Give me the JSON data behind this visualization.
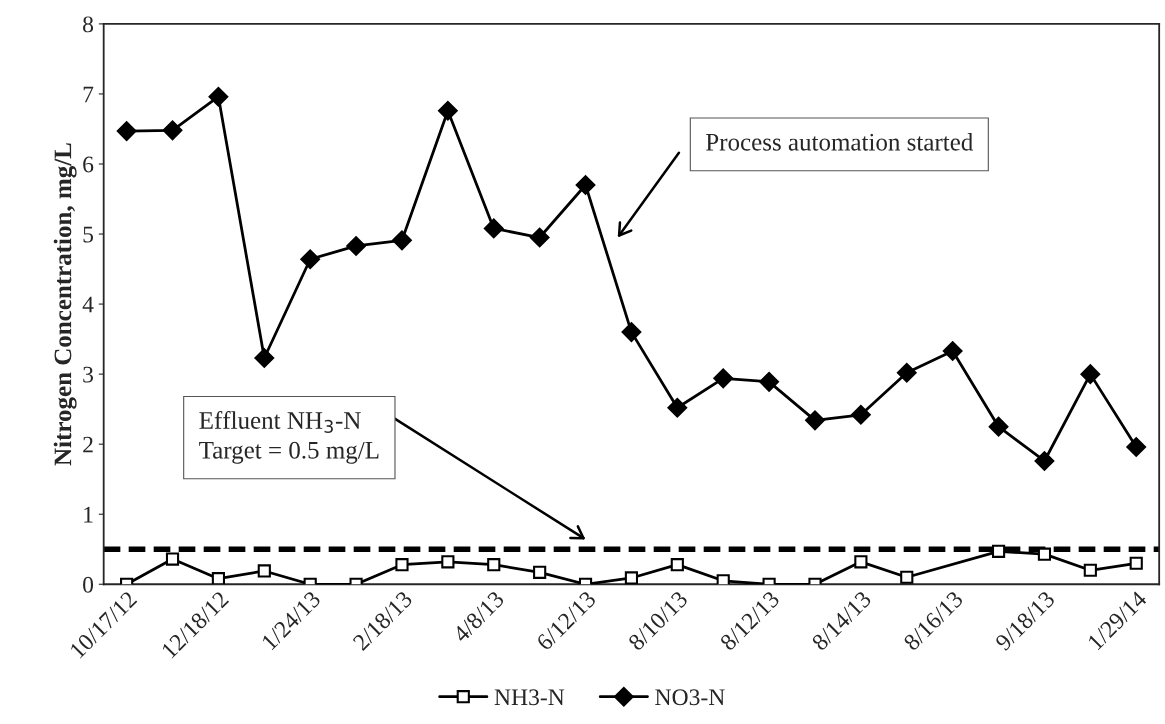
{
  "chart_data": {
    "type": "line",
    "ylabel": "Nitrogen Concentration, mg/L",
    "categories": [
      "10/17/12",
      null,
      "12/18/12",
      null,
      "1/24/13",
      null,
      "2/18/13",
      null,
      "4/8/13",
      null,
      "6/12/13",
      null,
      "8/10/13",
      null,
      "8/12/13",
      null,
      "8/14/13",
      null,
      "8/16/13",
      null,
      "9/18/13",
      null,
      "1/29/14"
    ],
    "series": [
      {
        "name": "NH3-N",
        "color": "#000000",
        "marker": "square",
        "values": [
          0,
          0.36,
          0.08,
          0.19,
          0,
          0,
          0.28,
          0.32,
          0.28,
          0.17,
          0,
          0.09,
          0.28,
          0.05,
          0,
          0,
          0.32,
          0.1,
          null,
          0.47,
          0.43,
          0.2,
          0.3
        ]
      },
      {
        "name": "NO3-N",
        "color": "#000000",
        "marker": "diamond",
        "values": [
          6.47,
          6.48,
          6.96,
          3.23,
          4.64,
          4.83,
          4.91,
          6.76,
          5.08,
          4.95,
          5.7,
          3.6,
          2.52,
          2.94,
          2.89,
          2.34,
          2.42,
          3.02,
          3.33,
          2.25,
          1.76,
          3.0,
          1.96
        ]
      }
    ],
    "ylim": [
      0,
      8
    ],
    "yticks": [
      0,
      1,
      2,
      3,
      4,
      5,
      6,
      7,
      8
    ],
    "ref_lines": [
      {
        "axis": "y",
        "value": 0.5,
        "color": "#000000",
        "line_style": "dashed"
      }
    ],
    "annotations": [
      "Effluent NH$_{3}$-N\nTarget = 0.5 mg/L",
      "Process automation started"
    ],
    "grid": false,
    "legend": "bottom"
  }
}
